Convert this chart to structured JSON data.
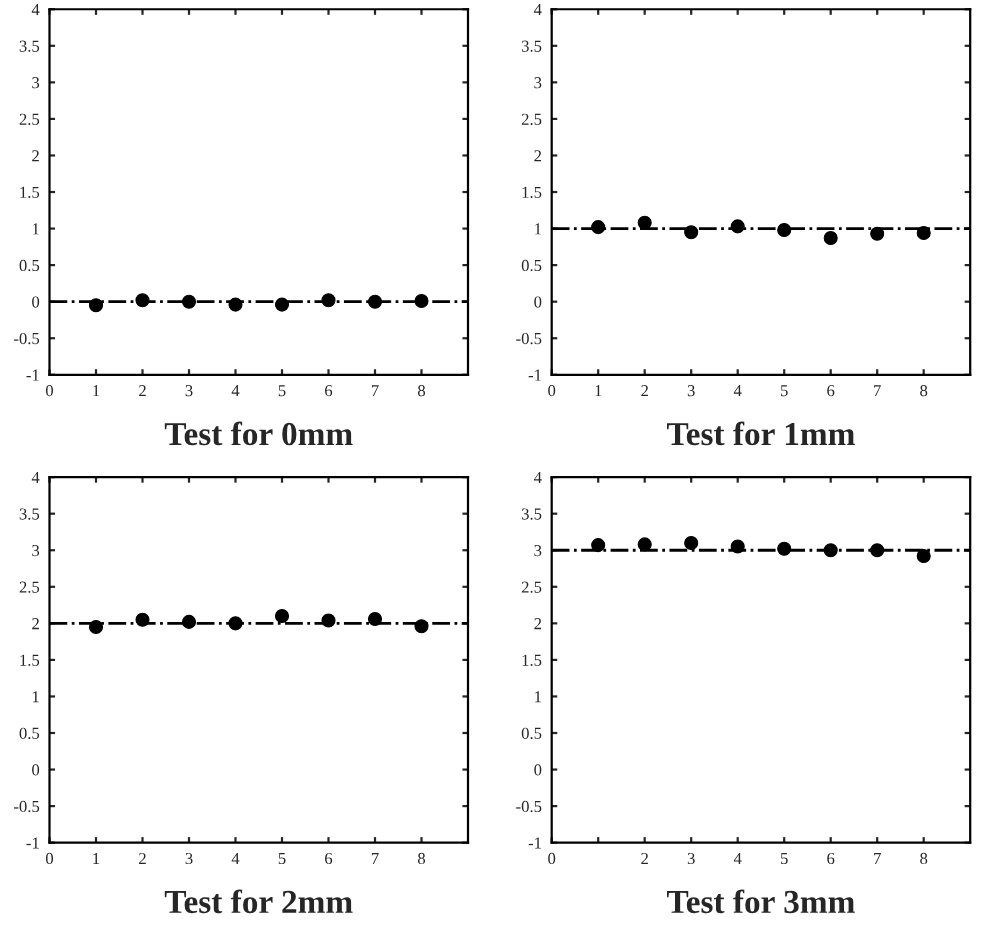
{
  "chart_data": [
    {
      "type": "scatter",
      "xlabel": "Test for 0mm",
      "x": [
        1,
        2,
        3,
        4,
        5,
        6,
        7,
        8
      ],
      "series": [
        {
          "color": "#000000",
          "values": [
            -0.05,
            0.02,
            0.0,
            -0.04,
            -0.04,
            0.02,
            0.0,
            0.01
          ]
        }
      ],
      "marker": "circle",
      "xlim": [
        0,
        9
      ],
      "xticks": [
        0,
        1,
        2,
        3,
        4,
        5,
        6,
        7,
        8
      ],
      "ylim": [
        -1,
        4
      ],
      "yticks": [
        -1,
        -0.5,
        0,
        0.5,
        1,
        1.5,
        2,
        2.5,
        3,
        3.5,
        4
      ],
      "ref_lines": [
        {
          "axis": "y",
          "value": 0,
          "color": "#000000",
          "line_style": "dashed"
        }
      ]
    },
    {
      "type": "scatter",
      "xlabel": "Test for 1mm",
      "x": [
        1,
        2,
        3,
        4,
        5,
        6,
        7,
        8
      ],
      "series": [
        {
          "color": "#000000",
          "values": [
            1.02,
            1.08,
            0.95,
            1.03,
            0.98,
            0.87,
            0.93,
            0.94
          ]
        }
      ],
      "marker": "circle",
      "xlim": [
        0,
        9
      ],
      "xticks": [
        0,
        1,
        2,
        3,
        4,
        5,
        6,
        7,
        8
      ],
      "ylim": [
        -1,
        4
      ],
      "yticks": [
        -1,
        -0.5,
        0,
        0.5,
        1,
        1.5,
        2,
        2.5,
        3,
        3.5,
        4
      ],
      "ref_lines": [
        {
          "axis": "y",
          "value": 1,
          "color": "#000000",
          "line_style": "dashed"
        }
      ]
    },
    {
      "type": "scatter",
      "xlabel": "Test for 2mm",
      "x": [
        1,
        2,
        3,
        4,
        5,
        6,
        7,
        8
      ],
      "series": [
        {
          "color": "#000000",
          "values": [
            1.95,
            2.05,
            2.02,
            2.0,
            2.1,
            2.04,
            2.06,
            1.96
          ]
        }
      ],
      "marker": "circle",
      "xlim": [
        0,
        9
      ],
      "xticks": [
        0,
        1,
        2,
        3,
        4,
        5,
        6,
        7,
        8
      ],
      "ylim": [
        -1,
        4
      ],
      "yticks": [
        -1,
        -0.5,
        0,
        0.5,
        1,
        1.5,
        2,
        2.5,
        3,
        3.5,
        4
      ],
      "ref_lines": [
        {
          "axis": "y",
          "value": 2,
          "color": "#000000",
          "line_style": "dashed"
        }
      ]
    },
    {
      "type": "scatter",
      "xlabel": "Test for 3mm",
      "x": [
        1,
        2,
        3,
        4,
        5,
        6,
        7,
        8
      ],
      "series": [
        {
          "color": "#000000",
          "values": [
            3.07,
            3.08,
            3.1,
            3.05,
            3.02,
            3.0,
            3.0,
            2.92
          ]
        }
      ],
      "marker": "circle",
      "xlim": [
        0,
        9
      ],
      "xticks": [
        0,
        {
          "value": 1,
          "label": null
        },
        2,
        3,
        4,
        5,
        6,
        7,
        8
      ],
      "ylim": [
        -1,
        4
      ],
      "yticks": [
        -1,
        -0.5,
        0,
        0.5,
        1,
        1.5,
        2,
        2.5,
        3,
        3.5,
        4
      ],
      "ref_lines": [
        {
          "axis": "y",
          "value": 3,
          "color": "#000000",
          "line_style": "dashed"
        }
      ]
    }
  ]
}
